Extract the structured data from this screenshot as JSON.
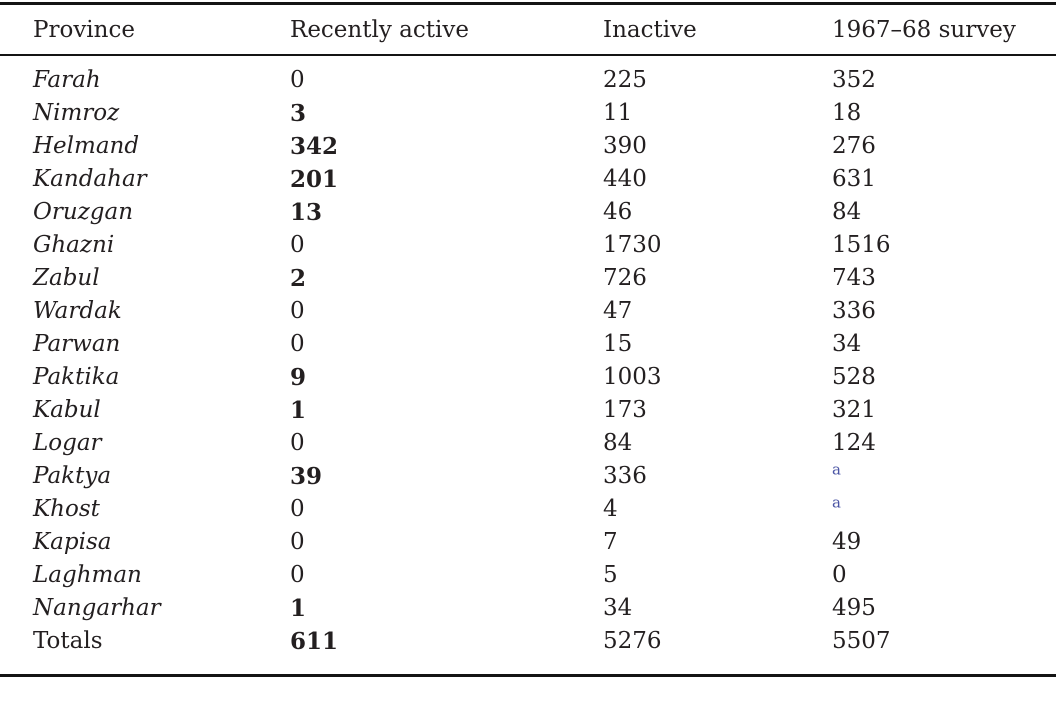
{
  "table": {
    "columns": [
      {
        "label": "Province"
      },
      {
        "label": "Recently active"
      },
      {
        "label": "Inactive"
      },
      {
        "label": "1967–68 survey"
      }
    ],
    "footnote_marker": "a",
    "colors": {
      "text": "#231f20",
      "rule": "#141414",
      "footnote_blue": "#4a54a4"
    },
    "rows": [
      {
        "province": "Farah",
        "italic": true,
        "recently_active": "0",
        "active_bold": false,
        "inactive": "225",
        "survey": "352",
        "survey_footnote": false
      },
      {
        "province": "Nimroz",
        "italic": true,
        "recently_active": "3",
        "active_bold": true,
        "inactive": "11",
        "survey": "18",
        "survey_footnote": false
      },
      {
        "province": "Helmand",
        "italic": true,
        "recently_active": "342",
        "active_bold": true,
        "inactive": "390",
        "survey": "276",
        "survey_footnote": false
      },
      {
        "province": "Kandahar",
        "italic": true,
        "recently_active": "201",
        "active_bold": true,
        "inactive": "440",
        "survey": "631",
        "survey_footnote": false
      },
      {
        "province": "Oruzgan",
        "italic": true,
        "recently_active": "13",
        "active_bold": true,
        "inactive": "46",
        "survey": "84",
        "survey_footnote": false
      },
      {
        "province": "Ghazni",
        "italic": true,
        "recently_active": "0",
        "active_bold": false,
        "inactive": "1730",
        "survey": "1516",
        "survey_footnote": false
      },
      {
        "province": "Zabul",
        "italic": true,
        "recently_active": "2",
        "active_bold": true,
        "inactive": "726",
        "survey": "743",
        "survey_footnote": false
      },
      {
        "province": "Wardak",
        "italic": true,
        "recently_active": "0",
        "active_bold": false,
        "inactive": "47",
        "survey": "336",
        "survey_footnote": false
      },
      {
        "province": "Parwan",
        "italic": true,
        "recently_active": "0",
        "active_bold": false,
        "inactive": "15",
        "survey": "34",
        "survey_footnote": false
      },
      {
        "province": "Paktika",
        "italic": true,
        "recently_active": "9",
        "active_bold": true,
        "inactive": "1003",
        "survey": "528",
        "survey_footnote": false
      },
      {
        "province": "Kabul",
        "italic": true,
        "recently_active": "1",
        "active_bold": true,
        "inactive": "173",
        "survey": "321",
        "survey_footnote": false
      },
      {
        "province": "Logar",
        "italic": true,
        "recently_active": "0",
        "active_bold": false,
        "inactive": "84",
        "survey": "124",
        "survey_footnote": false
      },
      {
        "province": "Paktya",
        "italic": true,
        "recently_active": "39",
        "active_bold": true,
        "inactive": "336",
        "survey": "",
        "survey_footnote": true
      },
      {
        "province": "Khost",
        "italic": true,
        "recently_active": "0",
        "active_bold": false,
        "inactive": "4",
        "survey": "",
        "survey_footnote": true
      },
      {
        "province": "Kapisa",
        "italic": true,
        "recently_active": "0",
        "active_bold": false,
        "inactive": "7",
        "survey": "49",
        "survey_footnote": false
      },
      {
        "province": "Laghman",
        "italic": true,
        "recently_active": "0",
        "active_bold": false,
        "inactive": "5",
        "survey": "0",
        "survey_footnote": false
      },
      {
        "province": "Nangarhar",
        "italic": true,
        "recently_active": "1",
        "active_bold": true,
        "inactive": "34",
        "survey": "495",
        "survey_footnote": false
      },
      {
        "province": "Totals",
        "italic": false,
        "recently_active": "611",
        "active_bold": true,
        "inactive": "5276",
        "survey": "5507",
        "survey_footnote": false
      }
    ]
  }
}
